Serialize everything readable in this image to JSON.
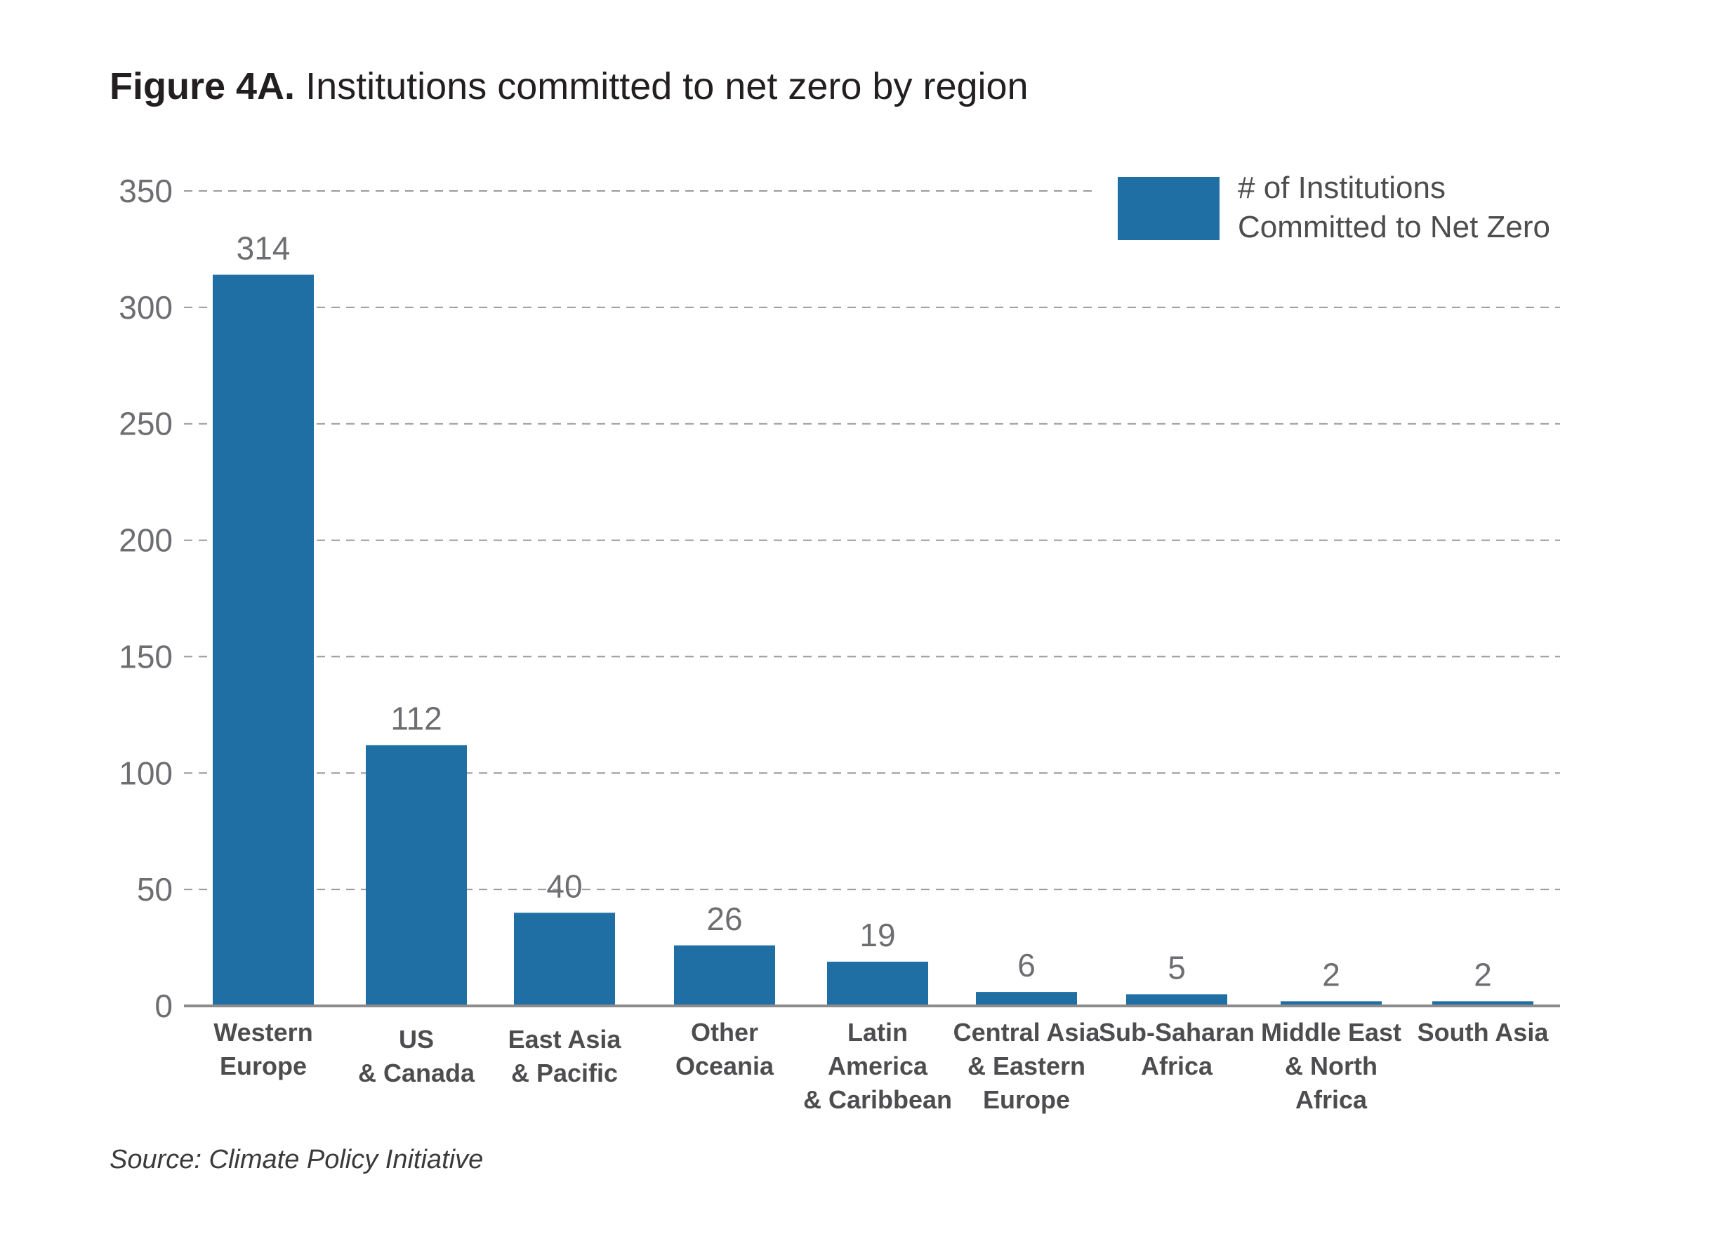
{
  "figure": {
    "label": "Figure 4A.",
    "title": "Institutions committed to net zero by region",
    "source": "Source: Climate Policy Initiative"
  },
  "colors": {
    "bar": "#1f6fa5",
    "grid": "#9a9a9a",
    "axis": "#8c8c8c",
    "tick_text": "#6d6e71",
    "category_text": "#4d4d4f",
    "value_text": "#6d6e71"
  },
  "chart_data": {
    "type": "bar",
    "title": "Institutions committed to net zero by region",
    "xlabel": "",
    "ylabel": "",
    "ylim": [
      0,
      350
    ],
    "yticks": [
      0,
      50,
      100,
      150,
      200,
      250,
      300,
      350
    ],
    "grid": true,
    "legend_position": "top-right",
    "categories": [
      [
        "Western",
        "Europe"
      ],
      [
        "US",
        "& Canada"
      ],
      [
        "East Asia",
        "& Pacific"
      ],
      [
        "Other",
        "Oceania"
      ],
      [
        "Latin",
        "America",
        "& Caribbean"
      ],
      [
        "Central Asia",
        "& Eastern",
        "Europe"
      ],
      [
        "Sub-Saharan",
        "Africa"
      ],
      [
        "Middle East",
        "& North",
        "Africa"
      ],
      [
        "South Asia"
      ]
    ],
    "series": [
      {
        "name": [
          "# of Institutions",
          "Committed to Net Zero"
        ],
        "values": [
          314,
          112,
          40,
          26,
          19,
          6,
          5,
          2,
          2
        ]
      }
    ]
  }
}
